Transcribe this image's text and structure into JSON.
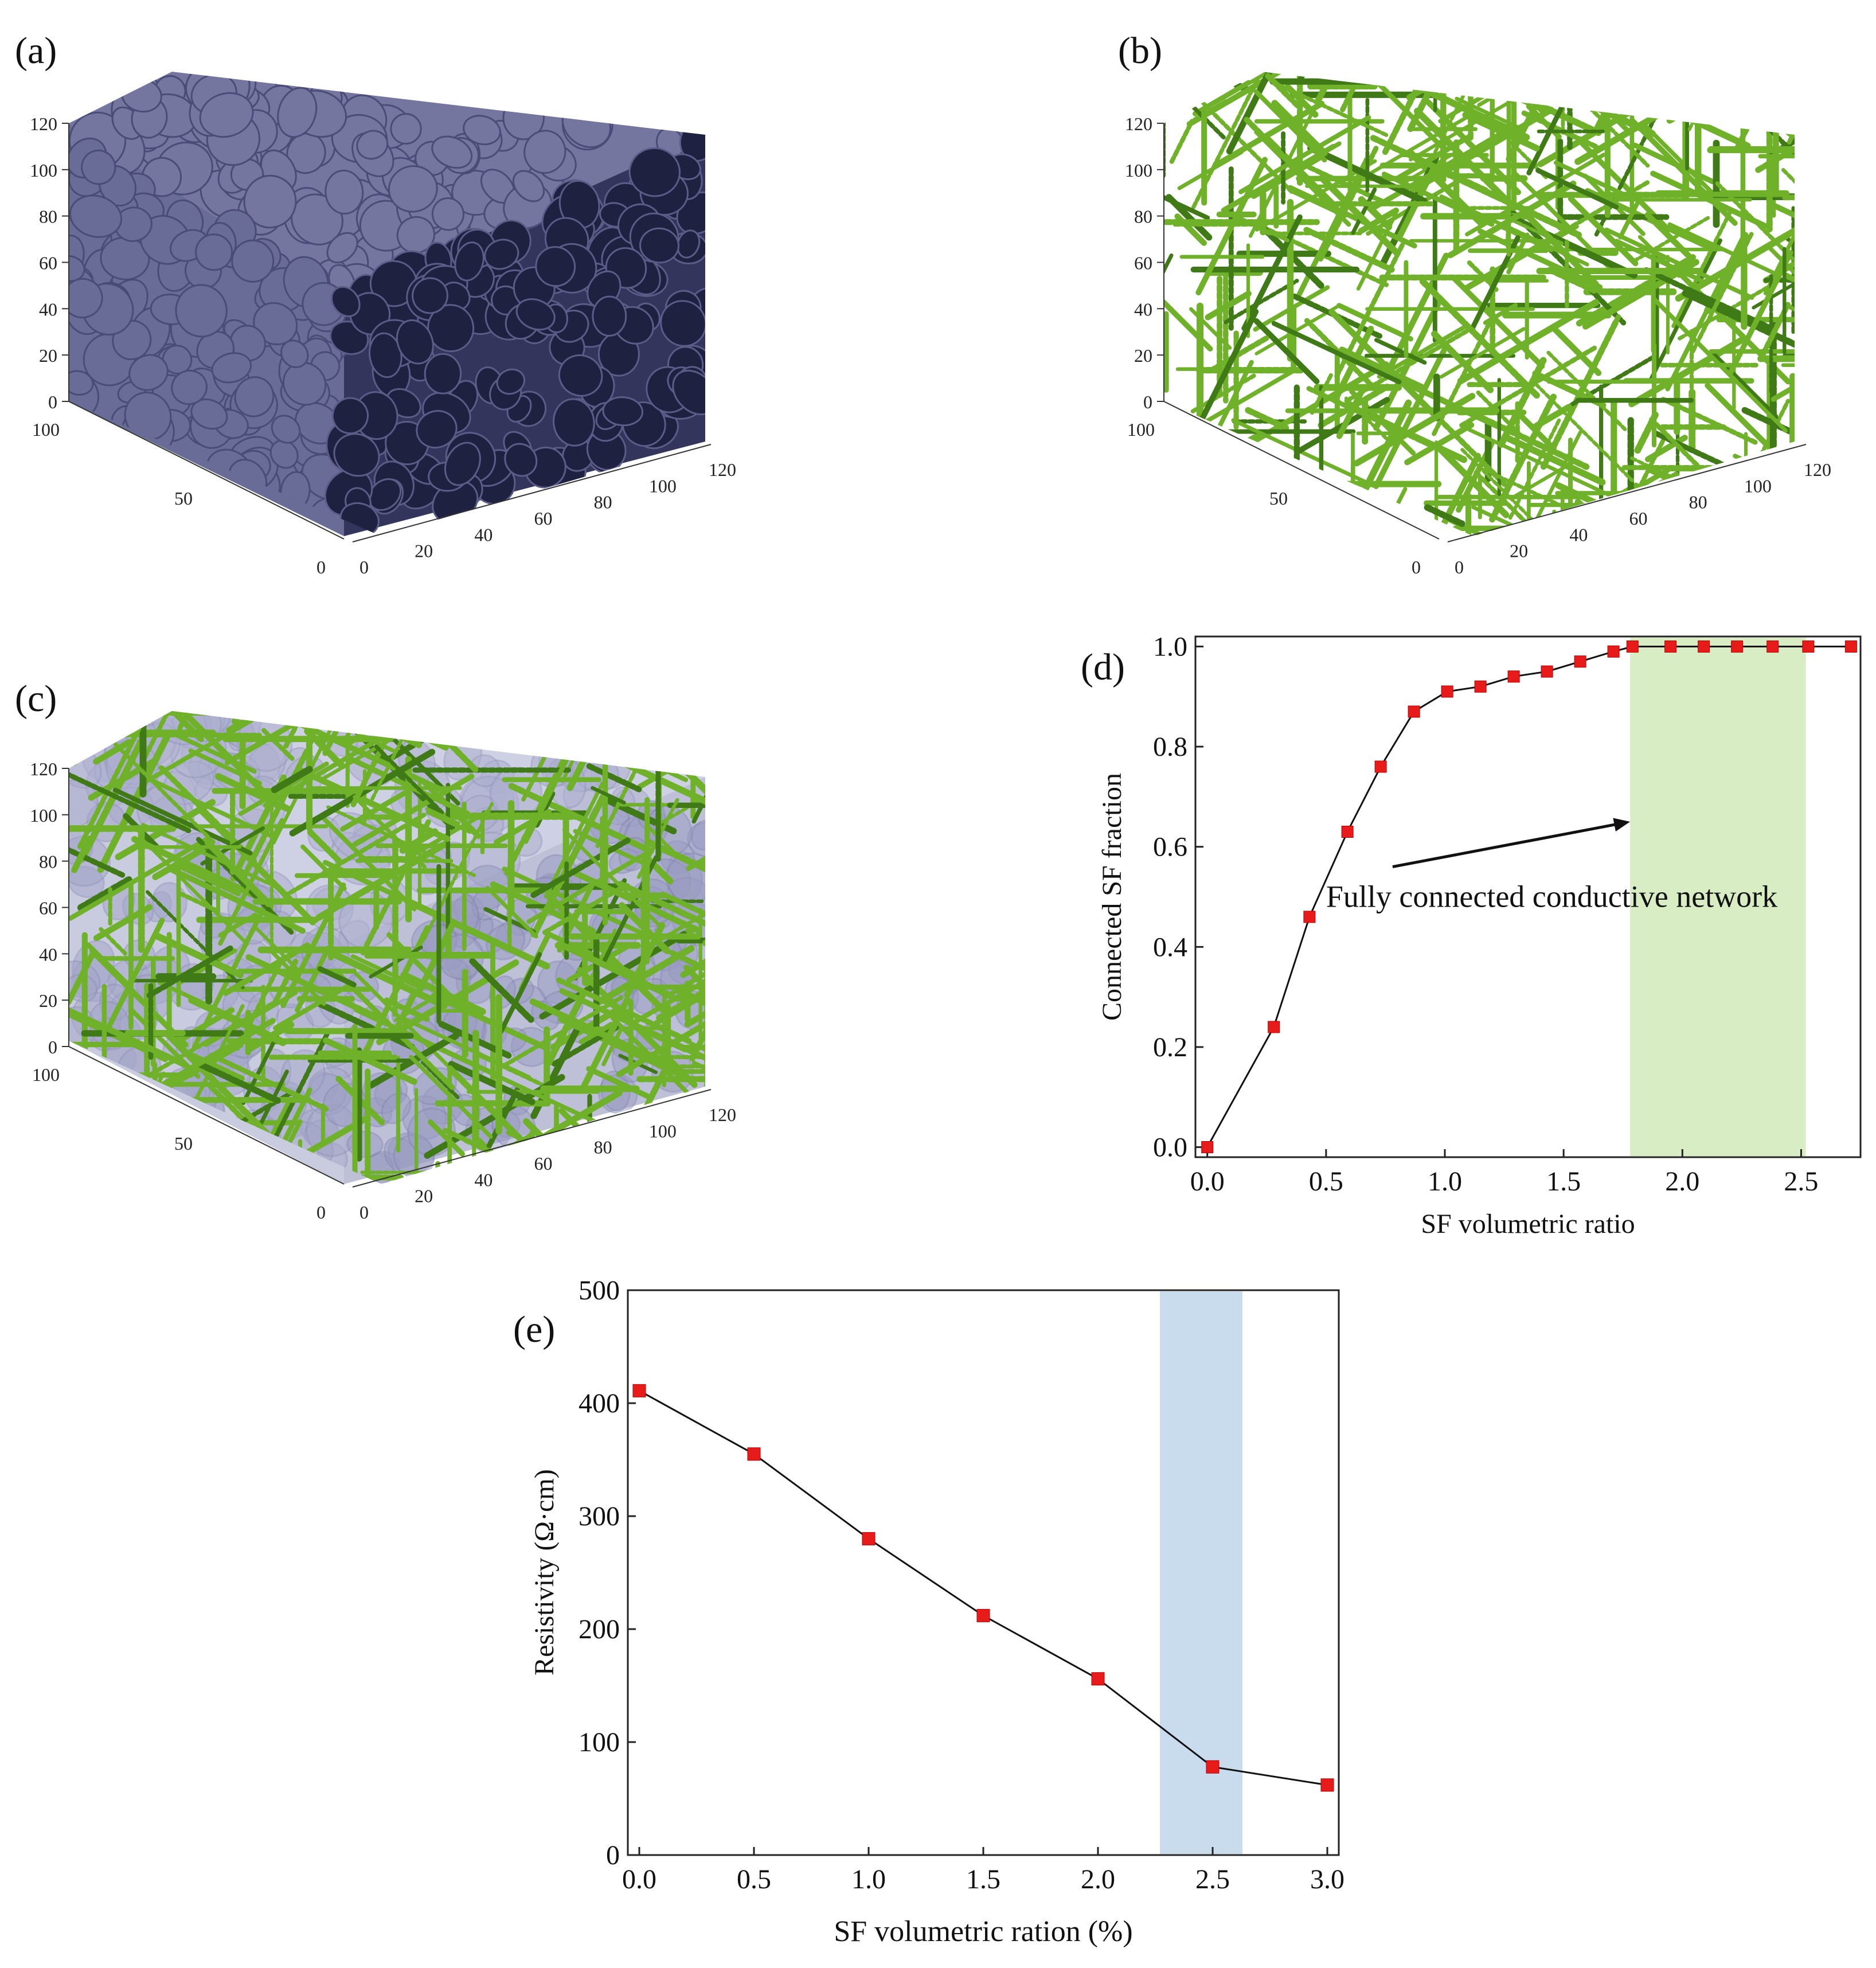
{
  "panels": [
    {
      "label": "(a)",
      "type": "3d-render",
      "content": "aggregate particles (blue-grey)"
    },
    {
      "label": "(b)",
      "type": "3d-render",
      "content": "steel fibers (green)"
    },
    {
      "label": "(c)",
      "type": "3d-render",
      "content": "aggregates with steel fibers"
    }
  ],
  "axes3d": {
    "z_ticks": [
      "0",
      "20",
      "40",
      "60",
      "80",
      "100",
      "120"
    ],
    "left_ticks": [
      "0",
      "50",
      "100"
    ],
    "right_ticks": [
      "0",
      "20",
      "40",
      "60",
      "80",
      "100",
      "120"
    ]
  },
  "colors": {
    "aggregate_top": "#74769f",
    "aggregate_front": "#6a6c98",
    "aggregate_side": "#33355c",
    "aggregate_hole": "#1f2140",
    "fiber": "#6fb22a",
    "fiber_dark": "#3f7a16",
    "marker": "#e81b1b",
    "band_d": "#d8edc4",
    "band_e": "#c8dcee"
  },
  "chart_data": [
    {
      "label": "(d)",
      "type": "line",
      "xlabel": "SF volumetric ratio",
      "ylabel": "Connected SF fraction",
      "xlim": [
        -0.05,
        2.75
      ],
      "ylim": [
        -0.02,
        1.02
      ],
      "xticks": [
        0.0,
        0.5,
        1.0,
        1.5,
        2.0,
        2.5
      ],
      "xtick_labels": [
        "0.0",
        "0.5",
        "1.0",
        "1.5",
        "2.0",
        "2.5"
      ],
      "yticks": [
        0.0,
        0.2,
        0.4,
        0.6,
        0.8,
        1.0
      ],
      "ytick_labels": [
        "0.0",
        "0.2",
        "0.4",
        "0.6",
        "0.8",
        "1.0"
      ],
      "x": [
        0.0,
        0.28,
        0.43,
        0.59,
        0.73,
        0.87,
        1.01,
        1.15,
        1.29,
        1.43,
        1.57,
        1.71,
        1.79,
        1.95,
        2.09,
        2.23,
        2.38,
        2.53,
        2.71
      ],
      "y": [
        0.0,
        0.24,
        0.46,
        0.63,
        0.76,
        0.87,
        0.91,
        0.92,
        0.94,
        0.95,
        0.97,
        0.99,
        1.0,
        1.0,
        1.0,
        1.0,
        1.0,
        1.0,
        1.0
      ],
      "band": [
        1.78,
        2.52
      ],
      "annotation": "Fully connected conductive network",
      "annotation_x": 0.5,
      "annotation_y": 0.48,
      "arrow_from": [
        0.78,
        0.56
      ],
      "arrow_to": [
        1.78,
        0.65
      ]
    },
    {
      "label": "(e)",
      "type": "line",
      "xlabel": "SF volumetric ration (%)",
      "ylabel": "Resistivity (Ω·cm)",
      "xlim": [
        -0.05,
        3.05
      ],
      "ylim": [
        0,
        500
      ],
      "xticks": [
        0.0,
        0.5,
        1.0,
        1.5,
        2.0,
        2.5,
        3.0
      ],
      "xtick_labels": [
        "0.0",
        "0.5",
        "1.0",
        "1.5",
        "2.0",
        "2.5",
        "3.0"
      ],
      "yticks": [
        0,
        100,
        200,
        300,
        400,
        500
      ],
      "ytick_labels": [
        "0",
        "100",
        "200",
        "300",
        "400",
        "500"
      ],
      "x": [
        0.0,
        0.5,
        1.0,
        1.5,
        2.0,
        2.5,
        3.0
      ],
      "y": [
        411,
        355,
        280,
        212,
        156,
        78,
        62
      ],
      "band": [
        2.27,
        2.63
      ]
    }
  ]
}
